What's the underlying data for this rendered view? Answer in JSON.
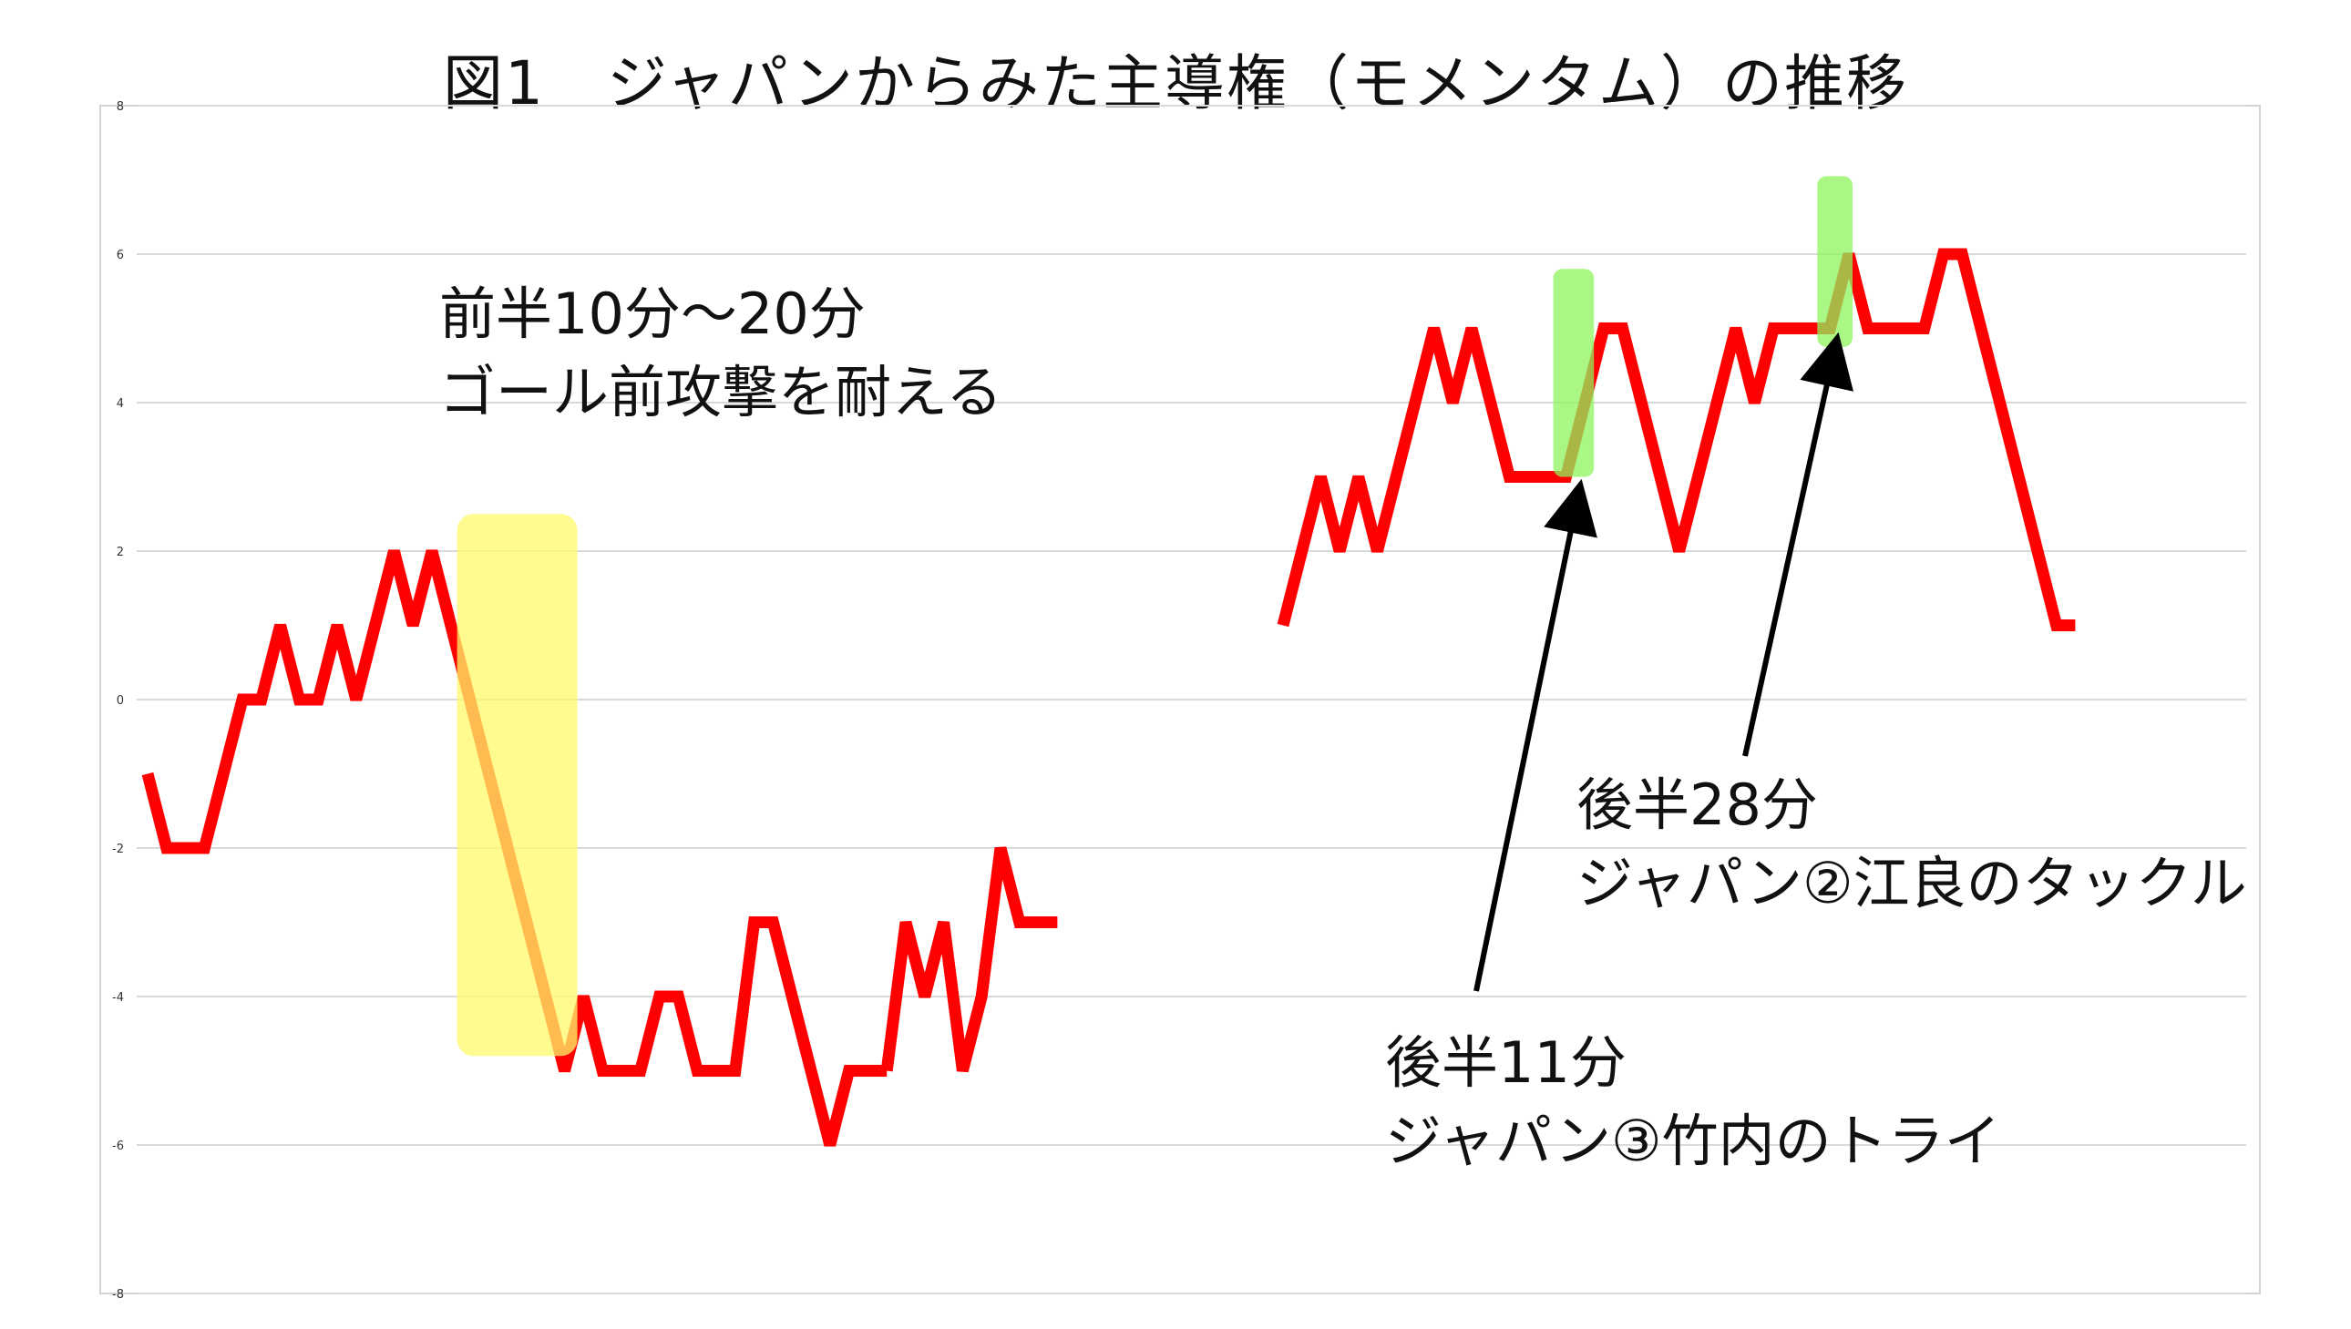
{
  "chart_data": {
    "type": "line",
    "title": "図1　ジャパンからみた主導権（モメンタム）の推移",
    "xlabel": "",
    "ylabel": "",
    "ylim": [
      -8,
      8
    ],
    "yticks": [
      8,
      6,
      4,
      2,
      0,
      -2,
      -4,
      -6,
      -8
    ],
    "grid": true,
    "legend": "none",
    "colors": {
      "line": "#ff0000",
      "grid": "#d9d9d9",
      "frame": "#d4d4d4",
      "highlight_yellow": "#fff96a",
      "highlight_green": "#8ef45c",
      "arrow": "#000000"
    },
    "series": [
      {
        "segment": "first-half",
        "x": [
          0,
          1,
          2,
          3,
          4,
          5,
          6,
          7,
          8,
          9,
          10,
          11,
          12,
          13,
          14,
          15,
          16,
          17,
          18,
          19,
          20,
          21,
          22,
          23,
          24,
          25,
          26,
          27,
          28,
          29,
          30,
          31,
          32,
          33,
          34,
          35,
          36,
          37,
          38,
          39
        ],
        "values": [
          -1,
          -2,
          -2,
          -2,
          -1,
          0,
          0,
          1,
          0,
          0,
          1,
          0,
          1,
          2,
          1,
          2,
          1,
          0,
          -1,
          -2,
          -3,
          -4,
          -5,
          -4,
          -5,
          -5,
          -5,
          -4,
          -4,
          -5,
          -5,
          -5,
          -3,
          -3,
          -4,
          -5,
          -6,
          -5,
          -5,
          -5
        ]
      },
      {
        "segment": "first-half-cont",
        "x": [
          39,
          40,
          41,
          42,
          43,
          44,
          45,
          46,
          47,
          48
        ],
        "values": [
          -5,
          -3,
          -4,
          -3,
          -5,
          -4,
          -2,
          -3,
          -3,
          -3
        ]
      },
      {
        "segment": "second-half",
        "x": [
          0,
          1,
          2,
          3,
          4,
          5,
          6,
          7,
          8,
          9,
          10,
          11,
          12,
          13,
          14,
          15,
          16,
          17,
          18,
          19,
          20,
          21,
          22,
          23,
          24,
          25,
          26,
          27,
          28,
          29,
          30,
          31,
          32,
          33,
          34,
          35,
          36,
          37,
          38,
          39,
          40,
          41,
          42
        ],
        "values": [
          1,
          2,
          3,
          2,
          3,
          2,
          3,
          4,
          5,
          4,
          5,
          4,
          3,
          3,
          3,
          3,
          4,
          5,
          5,
          4,
          3,
          2,
          3,
          4,
          5,
          4,
          5,
          5,
          5,
          5,
          6,
          5,
          5,
          5,
          5,
          6,
          6,
          5,
          4,
          3,
          2,
          1,
          1
        ]
      }
    ],
    "annotations": [
      {
        "id": "ann-1",
        "lines": [
          "前半10分〜20分",
          "ゴール前攻撃を耐える"
        ]
      },
      {
        "id": "ann-2",
        "lines": [
          "後半28分",
          "ジャパン②江良のタックル"
        ]
      },
      {
        "id": "ann-3",
        "lines": [
          "後半11分",
          "ジャパン③竹内のトライ"
        ]
      }
    ]
  }
}
